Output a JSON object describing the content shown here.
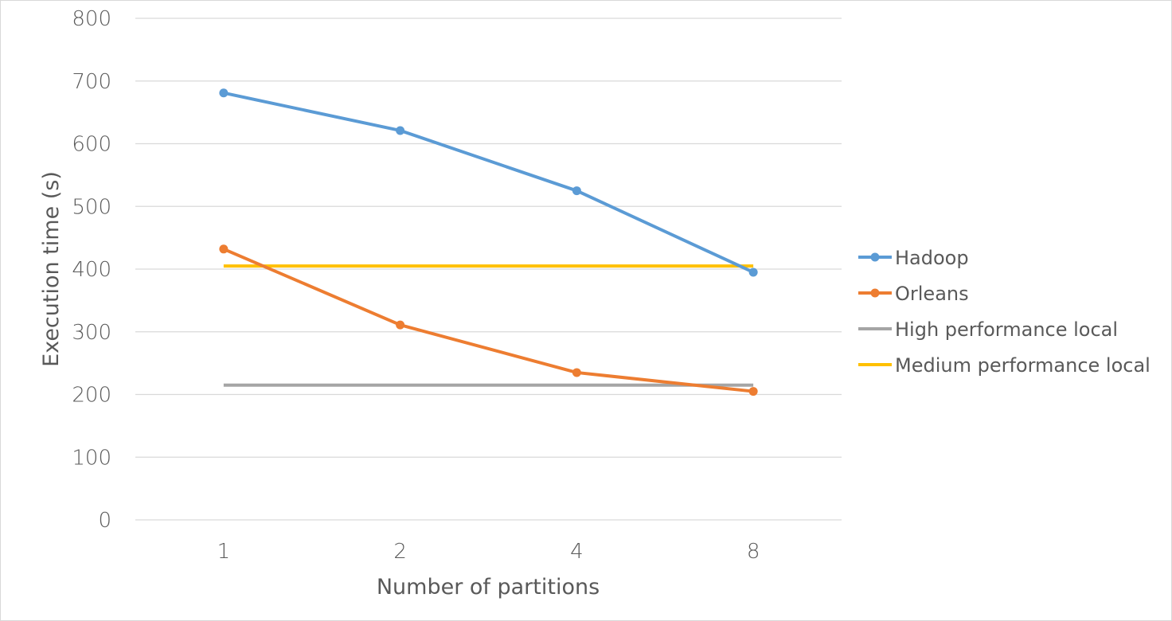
{
  "chart_data": {
    "type": "line",
    "categories": [
      "1",
      "2",
      "4",
      "8"
    ],
    "xlabel": "Number of partitions",
    "ylabel": "Execution time (s)",
    "ylim": [
      0,
      800
    ],
    "yticks": [
      0,
      100,
      200,
      300,
      400,
      500,
      600,
      700,
      800
    ],
    "grid": true,
    "legend_position": "right",
    "series": [
      {
        "name": "Hadoop",
        "values": [
          681,
          621,
          525,
          395
        ],
        "color": "#5b9bd5",
        "markers": true
      },
      {
        "name": "Orleans",
        "values": [
          432,
          311,
          235,
          205
        ],
        "color": "#ed7d31",
        "markers": true
      },
      {
        "name": "High performance local",
        "values": [
          215,
          215,
          215,
          215
        ],
        "color": "#a5a5a5",
        "markers": false
      },
      {
        "name": "Medium performance local",
        "values": [
          405,
          405,
          405,
          405
        ],
        "color": "#ffc000",
        "markers": false
      }
    ]
  }
}
